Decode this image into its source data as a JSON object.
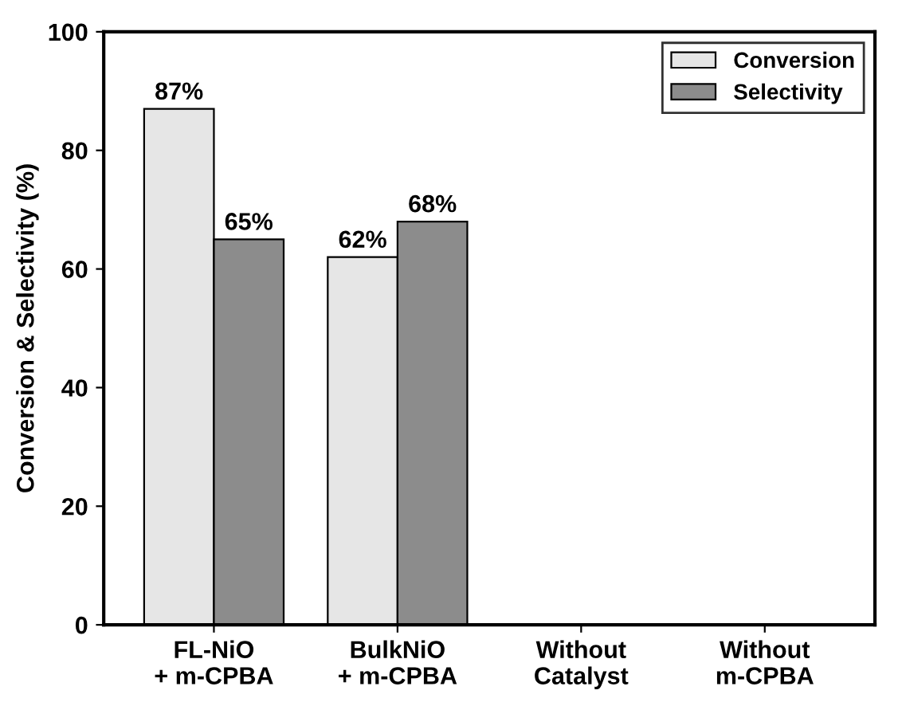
{
  "chart_data": {
    "type": "bar",
    "ylabel": "Conversion & Selectivity (%)",
    "categories": [
      "FL-NiO\n+ m-CPBA",
      "BulkNiO\n+ m-CPBA",
      "Without\nCatalyst",
      "Without\nm-CPBA"
    ],
    "series": [
      {
        "name": "Conversion",
        "color": "#e6e6e6",
        "values": [
          87,
          62,
          0,
          0
        ],
        "value_labels": [
          "87%",
          "62%",
          null,
          null
        ]
      },
      {
        "name": "Selectivity",
        "color": "#8c8c8c",
        "values": [
          65,
          68,
          0,
          0
        ],
        "value_labels": [
          "65%",
          "68%",
          null,
          null
        ]
      }
    ],
    "ylim": [
      0,
      100
    ],
    "yticks": [
      0,
      20,
      40,
      60,
      80,
      100
    ],
    "legend": "top right",
    "grid": false
  }
}
